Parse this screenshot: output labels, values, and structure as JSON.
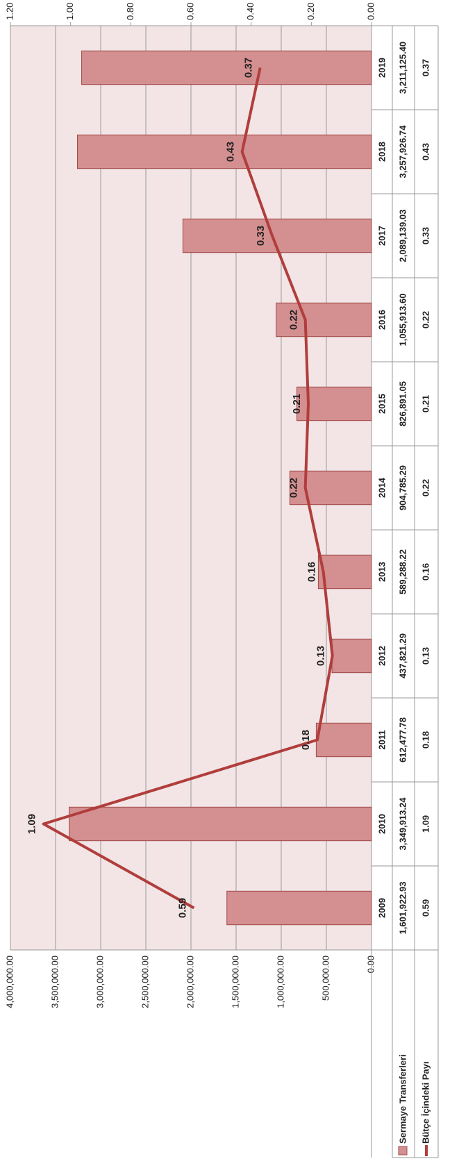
{
  "chart_data": {
    "type": "bar",
    "categories": [
      "2009",
      "2010",
      "2011",
      "2012",
      "2013",
      "2014",
      "2015",
      "2016",
      "2017",
      "2018",
      "2019"
    ],
    "series": [
      {
        "name": "Sermaye Transferleri",
        "color": "#d48f90",
        "type": "bar",
        "values": [
          1601922.93,
          3349913.24,
          612477.78,
          437821.29,
          589288.22,
          904785.29,
          826891.05,
          1055913.6,
          2089139.03,
          3257926.74,
          3211125.4
        ],
        "value_labels": [
          "1,601,922.93",
          "3,349,913.24",
          "612,477.78",
          "437,821.29",
          "589,288.22",
          "904,785.29",
          "826,891.05",
          "1,055,913.60",
          "2,089,139.03",
          "3,257,926.74",
          "3,211,125.40"
        ]
      },
      {
        "name": "Bütçe İçindeki Payı",
        "color": "#b03e3c",
        "type": "line",
        "axis": "y2",
        "values": [
          0.59,
          1.09,
          0.18,
          0.13,
          0.16,
          0.22,
          0.21,
          0.22,
          0.33,
          0.43,
          0.37
        ]
      }
    ],
    "ylim": [
      0,
      4000000
    ],
    "yticks": [
      {
        "value": 0,
        "label": "0.00"
      },
      {
        "value": 500000,
        "label": "500,000.00"
      },
      {
        "value": 1000000,
        "label": "1,000,000.00"
      },
      {
        "value": 1500000,
        "label": "1,500,000.00"
      },
      {
        "value": 2000000,
        "label": "2,000,000.00"
      },
      {
        "value": 2500000,
        "label": "2,500,000.00"
      },
      {
        "value": 3000000,
        "label": "3,000,000.00"
      },
      {
        "value": 3500000,
        "label": "3,500,000.00"
      },
      {
        "value": 4000000,
        "label": "4,000,000.00"
      }
    ],
    "y2lim": [
      0,
      1.2
    ],
    "y2ticks": [
      {
        "value": 0,
        "label": "0.00"
      },
      {
        "value": 0.2,
        "label": "0.20"
      },
      {
        "value": 0.4,
        "label": "0.40"
      },
      {
        "value": 0.6,
        "label": "0.60"
      },
      {
        "value": 0.8,
        "label": "0.80"
      },
      {
        "value": 1.0,
        "label": "1.00"
      },
      {
        "value": 1.2,
        "label": "1.20"
      }
    ],
    "grid": true
  }
}
